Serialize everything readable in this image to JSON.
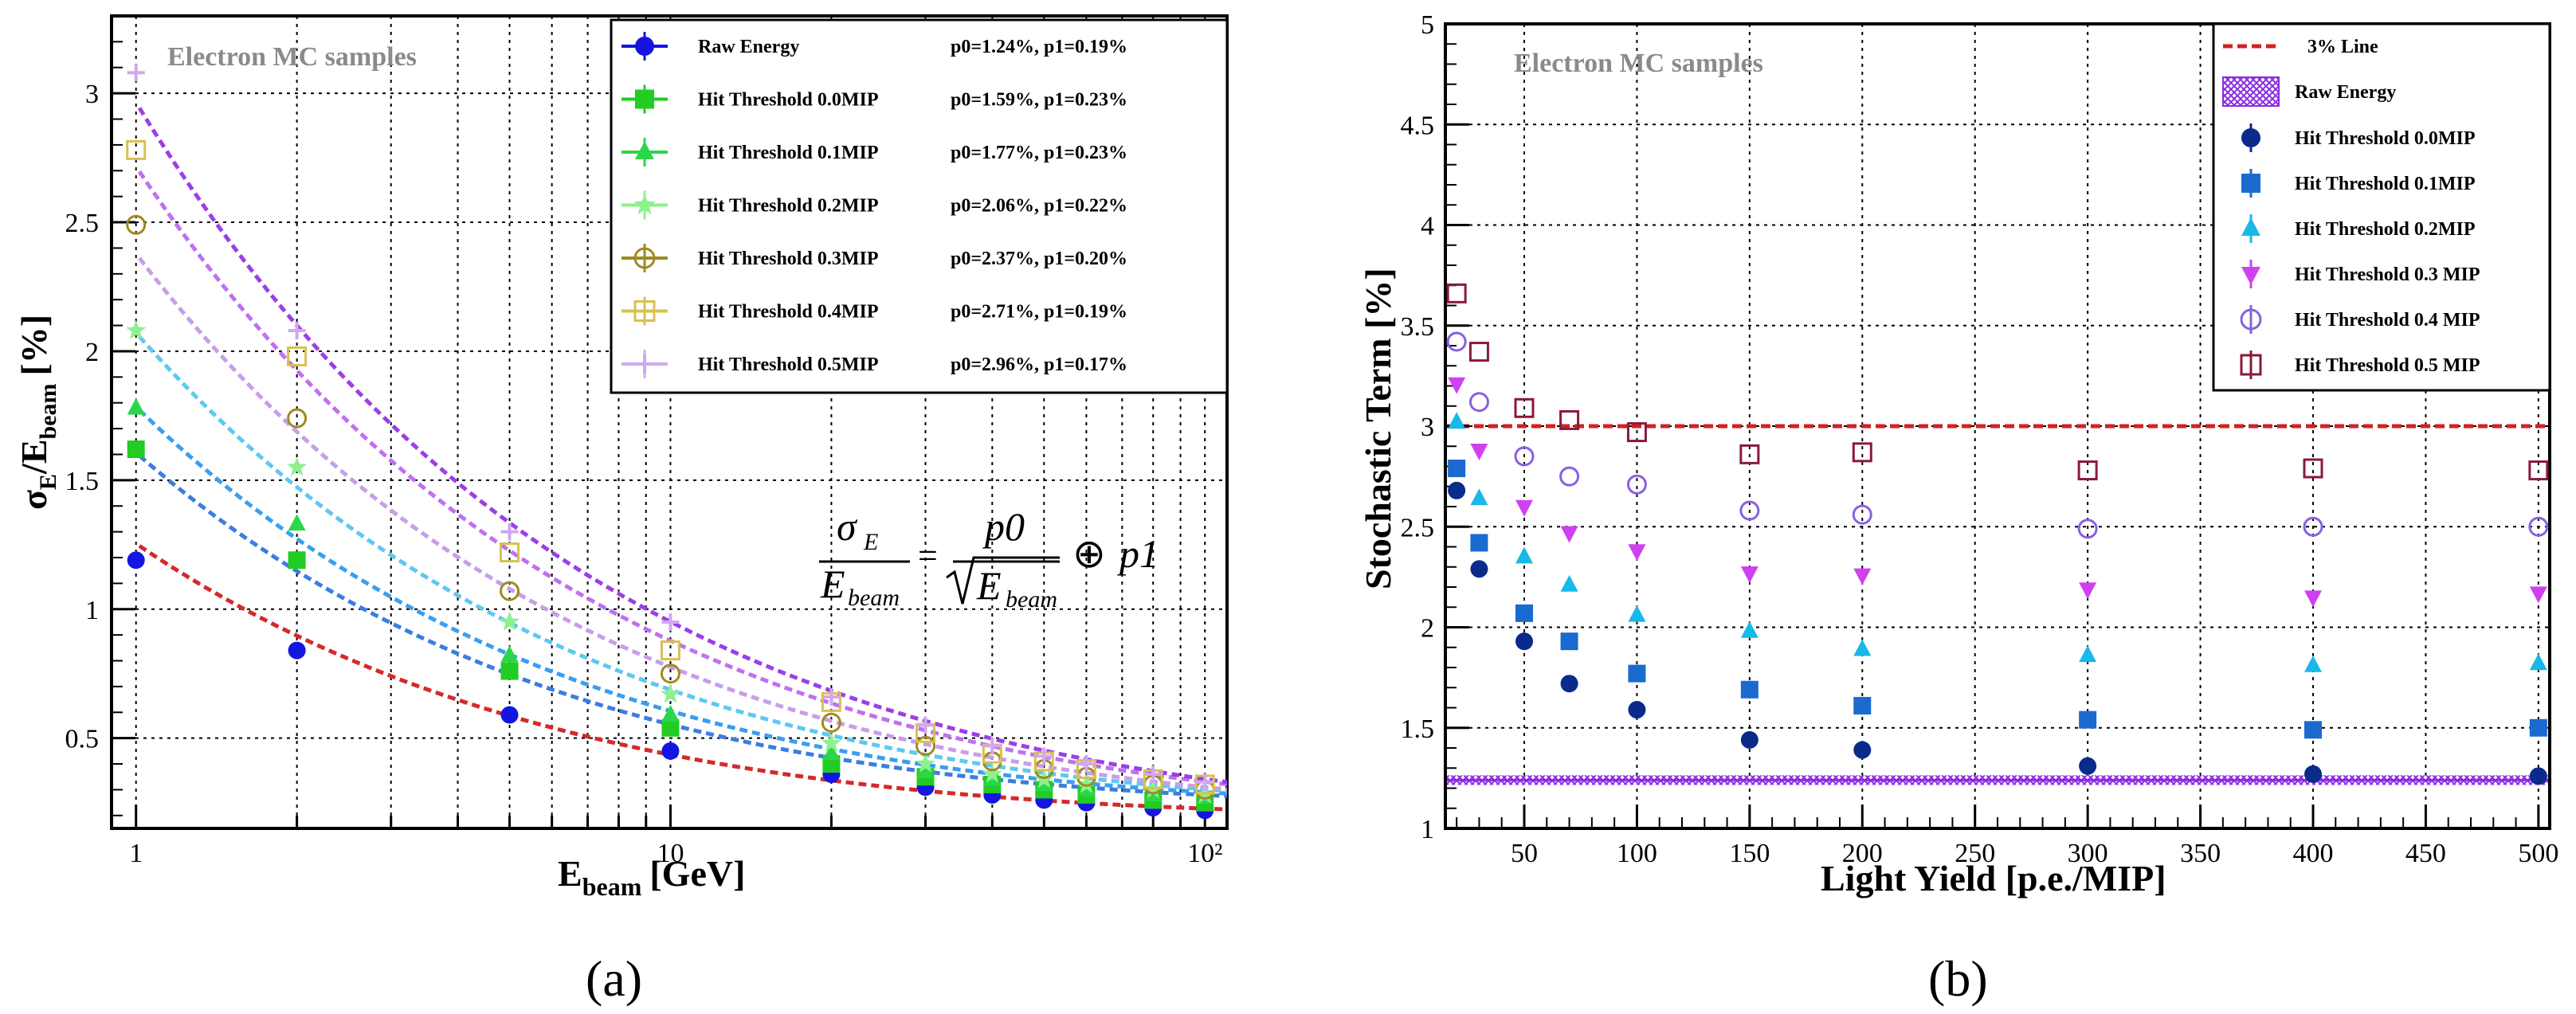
{
  "panel_labels": [
    "(a)",
    "(b)"
  ],
  "chart_data": [
    {
      "type": "scatter",
      "panel": "(a)",
      "annotation": "Electron MC samples",
      "xlabel_main": "E",
      "xlabel_sub": "beam",
      "xlabel_rest": "[GeV]",
      "ylabel_sigma": "σ",
      "ylabel_sub1": "E",
      "ylabel_slash": "/E",
      "ylabel_sub2": "beam",
      "ylabel_rest": "[%]",
      "xscale": "log",
      "xlim": [
        0.9,
        110
      ],
      "ylim": [
        0.15,
        3.3
      ],
      "x_ticks": [
        1,
        10,
        100
      ],
      "x_tick_labels": [
        "1",
        "10",
        "10²"
      ],
      "y_ticks": [
        0.5,
        1,
        1.5,
        2,
        2.5,
        3
      ],
      "y_tick_labels": [
        "0.5",
        "1",
        "1.5",
        "2",
        "2.5",
        "3"
      ],
      "grid": true,
      "formula": {
        "lhs_num": "σ",
        "lhs_num_sub": "E",
        "lhs_den": "E",
        "lhs_den_sub": "beam",
        "eq": "=",
        "rhs_num": "p0",
        "rhs_den": "E",
        "rhs_den_sub": "beam",
        "op": "⊕",
        "tail": "p1"
      },
      "x": [
        1,
        2,
        5,
        10,
        20,
        30,
        40,
        50,
        60,
        80,
        100
      ],
      "series": [
        {
          "name": "Raw Energy",
          "fit": "p0=1.24%, p1=0.19%",
          "p0": 1.24,
          "p1": 0.19,
          "color": "#1515e0",
          "fitcolor": "#d42a2a",
          "marker": "circle-filled",
          "values": [
            1.19,
            0.84,
            0.59,
            0.45,
            0.36,
            0.31,
            0.28,
            0.26,
            0.25,
            0.23,
            0.22
          ]
        },
        {
          "name": "Hit Threshold 0.0MIP",
          "fit": "p0=1.59%, p1=0.23%",
          "p0": 1.59,
          "p1": 0.23,
          "color": "#22cc22",
          "fitcolor": "#3b7de0",
          "marker": "square-filled",
          "values": [
            1.62,
            1.19,
            0.76,
            0.54,
            0.4,
            0.35,
            0.32,
            0.3,
            0.28,
            0.26,
            0.25
          ]
        },
        {
          "name": "Hit Threshold 0.1MIP",
          "fit": "p0=1.77%, p1=0.23%",
          "p0": 1.77,
          "p1": 0.23,
          "color": "#2bd64a",
          "fitcolor": "#3a9ef0",
          "marker": "triangle-filled",
          "values": [
            1.78,
            1.33,
            0.82,
            0.59,
            0.44,
            0.37,
            0.34,
            0.32,
            0.3,
            0.28,
            0.27
          ]
        },
        {
          "name": "Hit Threshold 0.2MIP",
          "fit": "p0=2.06%, p1=0.22%",
          "p0": 2.06,
          "p1": 0.22,
          "color": "#8ef08e",
          "fitcolor": "#5fc8f0",
          "marker": "star",
          "values": [
            2.08,
            1.55,
            0.95,
            0.67,
            0.48,
            0.4,
            0.36,
            0.34,
            0.32,
            0.3,
            0.28
          ]
        },
        {
          "name": "Hit Threshold 0.3MIP",
          "fit": "p0=2.37%, p1=0.20%",
          "p0": 2.37,
          "p1": 0.2,
          "color": "#a08a20",
          "fitcolor": "#c89ee8",
          "marker": "circle-open",
          "values": [
            2.49,
            1.74,
            1.07,
            0.75,
            0.56,
            0.47,
            0.41,
            0.38,
            0.35,
            0.32,
            0.3
          ]
        },
        {
          "name": "Hit Threshold 0.4MIP",
          "fit": "p0=2.71%, p1=0.19%",
          "p0": 2.71,
          "p1": 0.19,
          "color": "#d8c050",
          "fitcolor": "#c070f0",
          "marker": "square-open",
          "values": [
            2.78,
            1.98,
            1.22,
            0.84,
            0.64,
            0.52,
            0.44,
            0.41,
            0.38,
            0.34,
            0.32
          ]
        },
        {
          "name": "Hit Threshold 0.5MIP",
          "fit": "p0=2.96%, p1=0.17%",
          "p0": 2.96,
          "p1": 0.17,
          "color": "#d0a8f0",
          "fitcolor": "#9b3fe8",
          "marker": "cross",
          "values": [
            3.08,
            2.08,
            1.3,
            0.95,
            0.66,
            0.55,
            0.47,
            0.43,
            0.4,
            0.36,
            0.33
          ]
        }
      ]
    },
    {
      "type": "scatter",
      "panel": "(b)",
      "annotation": "Electron MC samples",
      "xlabel": "Light Yield [p.e./MIP]",
      "ylabel": "Stochastic Term [%]",
      "xlim": [
        15,
        505
      ],
      "ylim": [
        1,
        5
      ],
      "x_ticks": [
        50,
        100,
        150,
        200,
        250,
        300,
        350,
        400,
        450,
        500
      ],
      "y_ticks": [
        1,
        1.5,
        2,
        2.5,
        3,
        3.5,
        4,
        4.5,
        5
      ],
      "grid": true,
      "lines": [
        {
          "name": "3% Line",
          "y": 3.0,
          "color": "#d42020",
          "style": "dashed"
        },
        {
          "name": "Raw Energy",
          "y": 1.24,
          "color": "#8a2be2",
          "style": "band"
        }
      ],
      "x": [
        20,
        30,
        50,
        70,
        100,
        150,
        200,
        300,
        400,
        500
      ],
      "series": [
        {
          "name": "Hit Threshold 0.0MIP",
          "color": "#0a2a8c",
          "marker": "circle-filled",
          "values": [
            2.68,
            2.29,
            1.93,
            1.72,
            1.59,
            1.44,
            1.39,
            1.31,
            1.27,
            1.26
          ]
        },
        {
          "name": "Hit Threshold 0.1MIP",
          "color": "#1a6ad0",
          "marker": "square-filled",
          "values": [
            2.79,
            2.42,
            2.07,
            1.93,
            1.77,
            1.69,
            1.61,
            1.54,
            1.49,
            1.5
          ]
        },
        {
          "name": "Hit Threshold 0.2MIP",
          "color": "#18b8e8",
          "marker": "triangle-filled",
          "values": [
            3.02,
            2.64,
            2.35,
            2.21,
            2.06,
            1.98,
            1.89,
            1.86,
            1.81,
            1.82
          ]
        },
        {
          "name": "Hit Threshold 0.3 MIP",
          "color": "#d040f0",
          "marker": "triangle-down-filled",
          "values": [
            3.21,
            2.88,
            2.6,
            2.47,
            2.38,
            2.27,
            2.26,
            2.19,
            2.15,
            2.17
          ]
        },
        {
          "name": "Hit Threshold 0.4 MIP",
          "color": "#8a60e0",
          "marker": "circle-open",
          "values": [
            3.42,
            3.12,
            2.85,
            2.75,
            2.71,
            2.58,
            2.56,
            2.49,
            2.5,
            2.5
          ]
        },
        {
          "name": "Hit Threshold 0.5 MIP",
          "color": "#8a1a3a",
          "marker": "square-open",
          "values": [
            3.66,
            3.37,
            3.09,
            3.03,
            2.97,
            2.86,
            2.87,
            2.78,
            2.79,
            2.78
          ]
        }
      ]
    }
  ]
}
